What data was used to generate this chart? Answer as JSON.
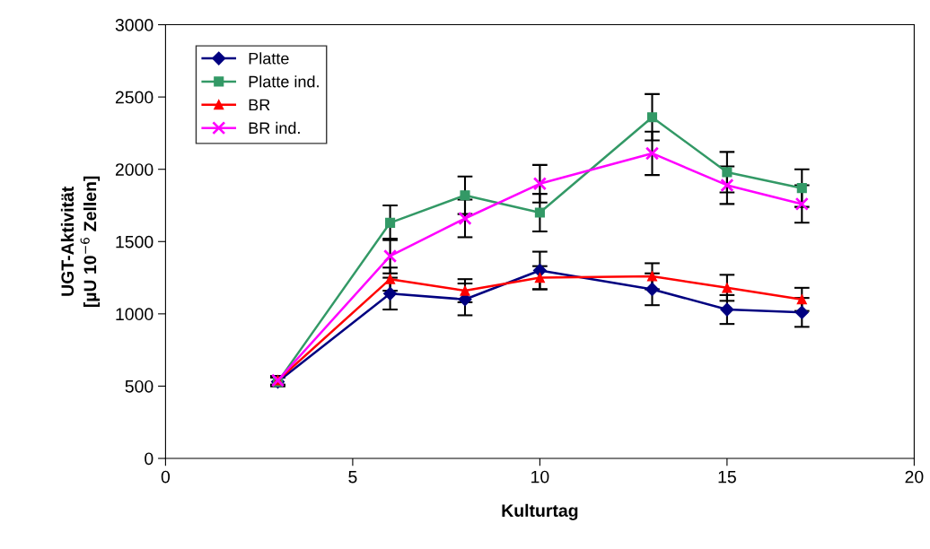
{
  "chart_data": {
    "type": "line",
    "xlabel": "Kulturtag",
    "ylabel": "UGT-Aktivität\n[µU 10$^{−6}$ Zellen]",
    "x": [
      3,
      6,
      8,
      10,
      13,
      15,
      17
    ],
    "series": [
      {
        "name": "Platte",
        "color": "#000080",
        "marker": "diamond",
        "values": [
          530,
          1140,
          1100,
          1300,
          1170,
          1030,
          1010
        ],
        "errors": [
          30,
          110,
          110,
          130,
          110,
          100,
          100
        ]
      },
      {
        "name": "Platte ind.",
        "color": "#339966",
        "marker": "square",
        "values": [
          530,
          1630,
          1820,
          1700,
          2360,
          1980,
          1870
        ],
        "errors": [
          30,
          120,
          130,
          130,
          160,
          140,
          130
        ]
      },
      {
        "name": "BR",
        "color": "#ff0000",
        "marker": "triangle",
        "values": [
          540,
          1240,
          1160,
          1250,
          1260,
          1180,
          1100
        ],
        "errors": [
          30,
          80,
          80,
          80,
          90,
          90,
          80
        ]
      },
      {
        "name": "BR ind.",
        "color": "#ff00ff",
        "marker": "cross",
        "values": [
          540,
          1400,
          1660,
          1900,
          2110,
          1890,
          1760
        ],
        "errors": [
          30,
          120,
          130,
          130,
          150,
          130,
          130
        ]
      }
    ],
    "xlim": [
      0,
      20
    ],
    "xticks": [
      0,
      5,
      10,
      15,
      20
    ],
    "ylim": [
      0,
      3000
    ],
    "yticks": [
      0,
      500,
      1000,
      1500,
      2000,
      2500,
      3000
    ],
    "grid": false,
    "legend": "top left",
    "line_style": "solid"
  }
}
